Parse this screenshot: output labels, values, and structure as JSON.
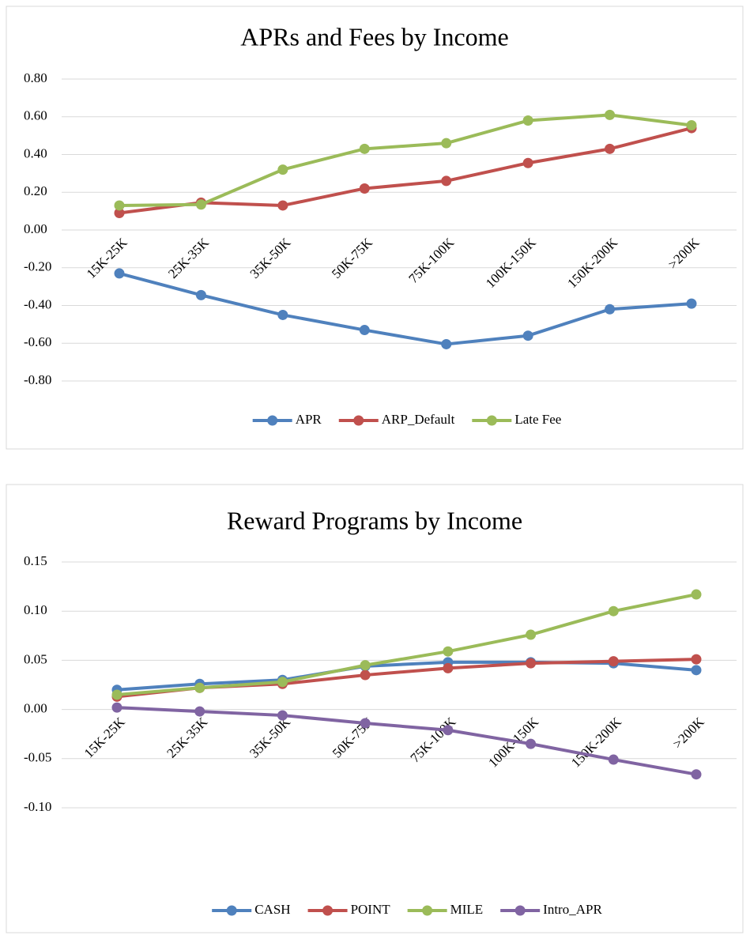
{
  "chart_data": [
    {
      "type": "line",
      "title": "APRs and Fees by Income",
      "categories": [
        "15K-25K",
        "25K-35K",
        "35K-50K",
        "50K-75K",
        "75K-100K",
        "100K-150K",
        "150K-200K",
        ">200K"
      ],
      "series": [
        {
          "name": "APR",
          "color": "#4f81bd",
          "values": [
            -0.23,
            -0.345,
            -0.45,
            -0.53,
            -0.605,
            -0.56,
            -0.42,
            -0.39
          ]
        },
        {
          "name": "ARP_Default",
          "color": "#c0504d",
          "values": [
            0.09,
            0.145,
            0.13,
            0.22,
            0.26,
            0.355,
            0.43,
            0.54
          ]
        },
        {
          "name": "Late Fee",
          "color": "#9bbb59",
          "values": [
            0.13,
            0.135,
            0.32,
            0.43,
            0.46,
            0.58,
            0.61,
            0.555
          ]
        }
      ],
      "ylim": [
        -0.8,
        0.8
      ],
      "yticks": [
        {
          "value": 0.8,
          "label": "0.80"
        },
        {
          "value": 0.6,
          "label": "0.60"
        },
        {
          "value": 0.4,
          "label": "0.40"
        },
        {
          "value": 0.2,
          "label": "0.20"
        },
        {
          "value": 0,
          "label": "0.00"
        },
        {
          "value": -0.2,
          "label": "-0.20"
        },
        {
          "value": -0.4,
          "label": "-0.40"
        },
        {
          "value": -0.6,
          "label": "-0.60"
        },
        {
          "value": -0.8,
          "label": "-0.80"
        }
      ],
      "grid": true,
      "legend": "bottom"
    },
    {
      "type": "line",
      "title": "Reward Programs by Income",
      "categories": [
        "15K-25K",
        "25K-35K",
        "35K-50K",
        "50K-75K",
        "75K-100K",
        "100K-150K",
        "150K-200K",
        ">200K"
      ],
      "series": [
        {
          "name": "CASH",
          "color": "#4f81bd",
          "values": [
            0.02,
            0.026,
            0.03,
            0.044,
            0.048,
            0.048,
            0.047,
            0.04
          ]
        },
        {
          "name": "POINT",
          "color": "#c0504d",
          "values": [
            0.013,
            0.022,
            0.026,
            0.035,
            0.042,
            0.047,
            0.049,
            0.051
          ]
        },
        {
          "name": "MILE",
          "color": "#9bbb59",
          "values": [
            0.015,
            0.022,
            0.028,
            0.045,
            0.059,
            0.076,
            0.1,
            0.117
          ]
        },
        {
          "name": "Intro_APR",
          "color": "#8064a2",
          "values": [
            0.002,
            -0.002,
            -0.006,
            -0.014,
            -0.021,
            -0.035,
            -0.051,
            -0.066
          ]
        }
      ],
      "ylim": [
        -0.1,
        0.15
      ],
      "yticks": [
        {
          "value": 0.15,
          "label": "0.15"
        },
        {
          "value": 0.1,
          "label": "0.10"
        },
        {
          "value": 0.05,
          "label": "0.05"
        },
        {
          "value": 0,
          "label": "0.00"
        },
        {
          "value": -0.05,
          "label": "-0.05"
        },
        {
          "value": -0.1,
          "label": "-0.10"
        }
      ],
      "grid": true,
      "legend": "bottom"
    }
  ]
}
